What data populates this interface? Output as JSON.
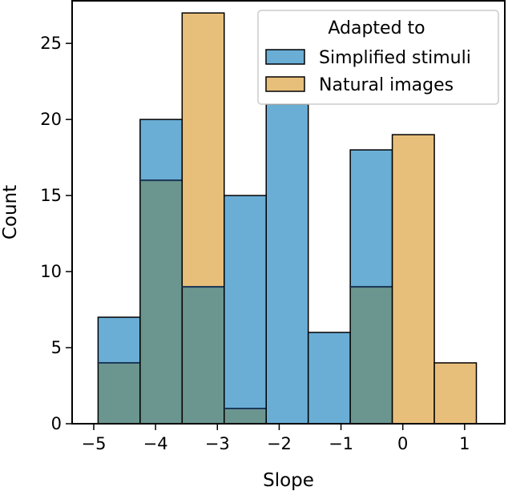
{
  "chart_data": {
    "type": "bar",
    "subtype": "overlaid-histogram",
    "xlabel": "Slope",
    "ylabel": "Count",
    "xlim": [
      -5.35,
      1.65
    ],
    "ylim": [
      0,
      27.8
    ],
    "xticks": [
      -5,
      -4,
      -3,
      -2,
      -1,
      0,
      1
    ],
    "xtick_labels": [
      "−5",
      "−4",
      "−3",
      "−2",
      "−1",
      "0",
      "1"
    ],
    "yticks": [
      0,
      5,
      10,
      15,
      20,
      25
    ],
    "ytick_labels": [
      "0",
      "5",
      "10",
      "15",
      "20",
      "25"
    ],
    "bin_edges": [
      -4.93,
      -4.25,
      -3.57,
      -2.89,
      -2.21,
      -1.53,
      -0.85,
      -0.17,
      0.51,
      1.19
    ],
    "grid": false,
    "legend": {
      "title": "Adapted to",
      "placement": "top-right"
    },
    "series": [
      {
        "name": "Simplified stimuli",
        "color": "#6aaed6",
        "values": [
          7,
          20,
          9,
          15,
          21,
          6,
          18,
          0,
          0
        ]
      },
      {
        "name": "Natural images",
        "color": "#e8bf7a",
        "values": [
          4,
          16,
          27,
          1,
          0,
          0,
          9,
          19,
          4
        ]
      }
    ],
    "overlap_color": "#6b968f"
  }
}
